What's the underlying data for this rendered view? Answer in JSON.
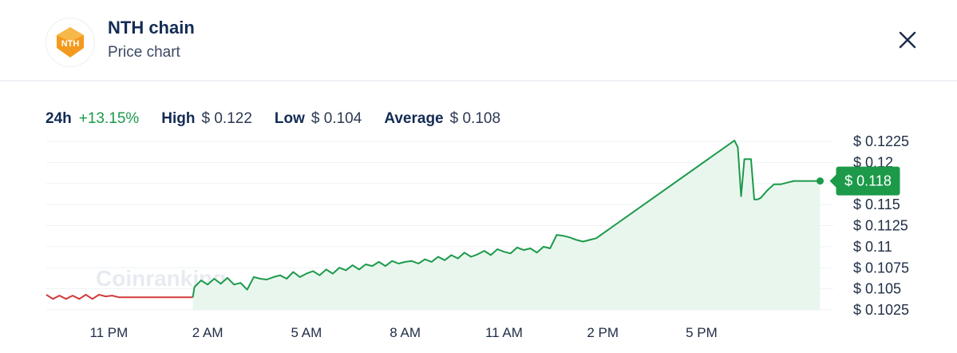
{
  "header": {
    "coin_name": "NTH chain",
    "subtitle": "Price chart",
    "logo_text": "NTH",
    "logo_icon": "nth-logo-icon",
    "close_icon": "close-icon"
  },
  "stats": {
    "period": "24h",
    "change": "+13.15%",
    "high_label": "High",
    "high_value": "$ 0.122",
    "low_label": "Low",
    "low_value": "$ 0.104",
    "average_label": "Average",
    "average_value": "$ 0.108"
  },
  "watermark": "Coinranking",
  "colors": {
    "up": "#1c9a4a",
    "down": "#d23a3a",
    "fill": "#e9f6ee",
    "grid": "#eef1f4",
    "tag": "#1c9a4a"
  },
  "chart_data": {
    "type": "line",
    "current_price_label": "$ 0.118",
    "current_price": 0.1178,
    "ylim": [
      0.1025,
      0.1225
    ],
    "y_ticks": [
      0.1225,
      0.12,
      0.1175,
      0.115,
      0.1125,
      0.11,
      0.1075,
      0.105,
      0.1025
    ],
    "y_tick_labels": [
      "$ 0.1225",
      "$ 0.12",
      "",
      "$ 0.115",
      "$ 0.1125",
      "$ 0.11",
      "$ 0.1075",
      "$ 0.105",
      "$ 0.1025"
    ],
    "xlim": [
      21.1,
      45.0
    ],
    "x_ticks": [
      23,
      26,
      29,
      32,
      35,
      38,
      41
    ],
    "x_tick_labels": [
      "11 PM",
      "2 AM",
      "5 AM",
      "8 AM",
      "11 AM",
      "2 PM",
      "5 PM"
    ],
    "series": [
      {
        "color": "#d23a3a",
        "x": [
          21.1,
          21.3,
          21.5,
          21.7,
          21.9,
          22.1,
          22.3,
          22.5,
          22.7,
          22.9,
          23.1,
          23.3,
          23.5,
          24.0,
          24.5,
          25.0,
          25.5,
          25.55
        ],
        "y": [
          0.1043,
          0.1038,
          0.1042,
          0.1038,
          0.1042,
          0.1038,
          0.1043,
          0.1038,
          0.1043,
          0.1041,
          0.1042,
          0.104,
          0.104,
          0.104,
          0.104,
          0.104,
          0.104,
          0.104
        ]
      },
      {
        "color": "#1c9a4a",
        "x": [
          25.55,
          25.6,
          25.8,
          26.0,
          26.2,
          26.4,
          26.6,
          26.8,
          27.0,
          27.2,
          27.4,
          27.6,
          27.8,
          28.0,
          28.2,
          28.4,
          28.6,
          28.8,
          29.0,
          29.2,
          29.4,
          29.6,
          29.8,
          30.0,
          30.2,
          30.4,
          30.6,
          30.8,
          31.0,
          31.2,
          31.4,
          31.6,
          31.8,
          32.0,
          32.2,
          32.4,
          32.6,
          32.8,
          33.0,
          33.2,
          33.4,
          33.6,
          33.8,
          34.0,
          34.2,
          34.4,
          34.6,
          34.8,
          35.0,
          35.2,
          35.4,
          35.6,
          35.8,
          36.0,
          36.2,
          36.4,
          36.6,
          36.8,
          37.0,
          37.2,
          37.4,
          37.6,
          37.8,
          42.0,
          42.1,
          42.2,
          42.3,
          42.5,
          42.6,
          42.7,
          42.8,
          43.0,
          43.2,
          43.4,
          43.6,
          43.8,
          44.0,
          44.2,
          44.4,
          44.6
        ],
        "y": [
          0.104,
          0.1052,
          0.106,
          0.1055,
          0.1062,
          0.1056,
          0.1063,
          0.1055,
          0.1057,
          0.1049,
          0.1064,
          0.1062,
          0.1061,
          0.1064,
          0.1066,
          0.1062,
          0.107,
          0.1064,
          0.1068,
          0.1071,
          0.1066,
          0.1073,
          0.1068,
          0.1075,
          0.1072,
          0.1078,
          0.1073,
          0.1079,
          0.1077,
          0.1082,
          0.1077,
          0.1083,
          0.108,
          0.1082,
          0.1083,
          0.108,
          0.1085,
          0.1082,
          0.1088,
          0.1084,
          0.109,
          0.1086,
          0.1093,
          0.1088,
          0.1091,
          0.1095,
          0.109,
          0.1097,
          0.1094,
          0.1092,
          0.1099,
          0.1096,
          0.1098,
          0.1093,
          0.11,
          0.1098,
          0.1114,
          0.1113,
          0.1111,
          0.1108,
          0.1106,
          0.1108,
          0.111,
          0.1226,
          0.1218,
          0.116,
          0.1204,
          0.1204,
          0.1156,
          0.1156,
          0.1158,
          0.1167,
          0.1174,
          0.1174,
          0.1176,
          0.1178,
          0.1178,
          0.1178,
          0.1178,
          0.1178
        ]
      }
    ]
  }
}
